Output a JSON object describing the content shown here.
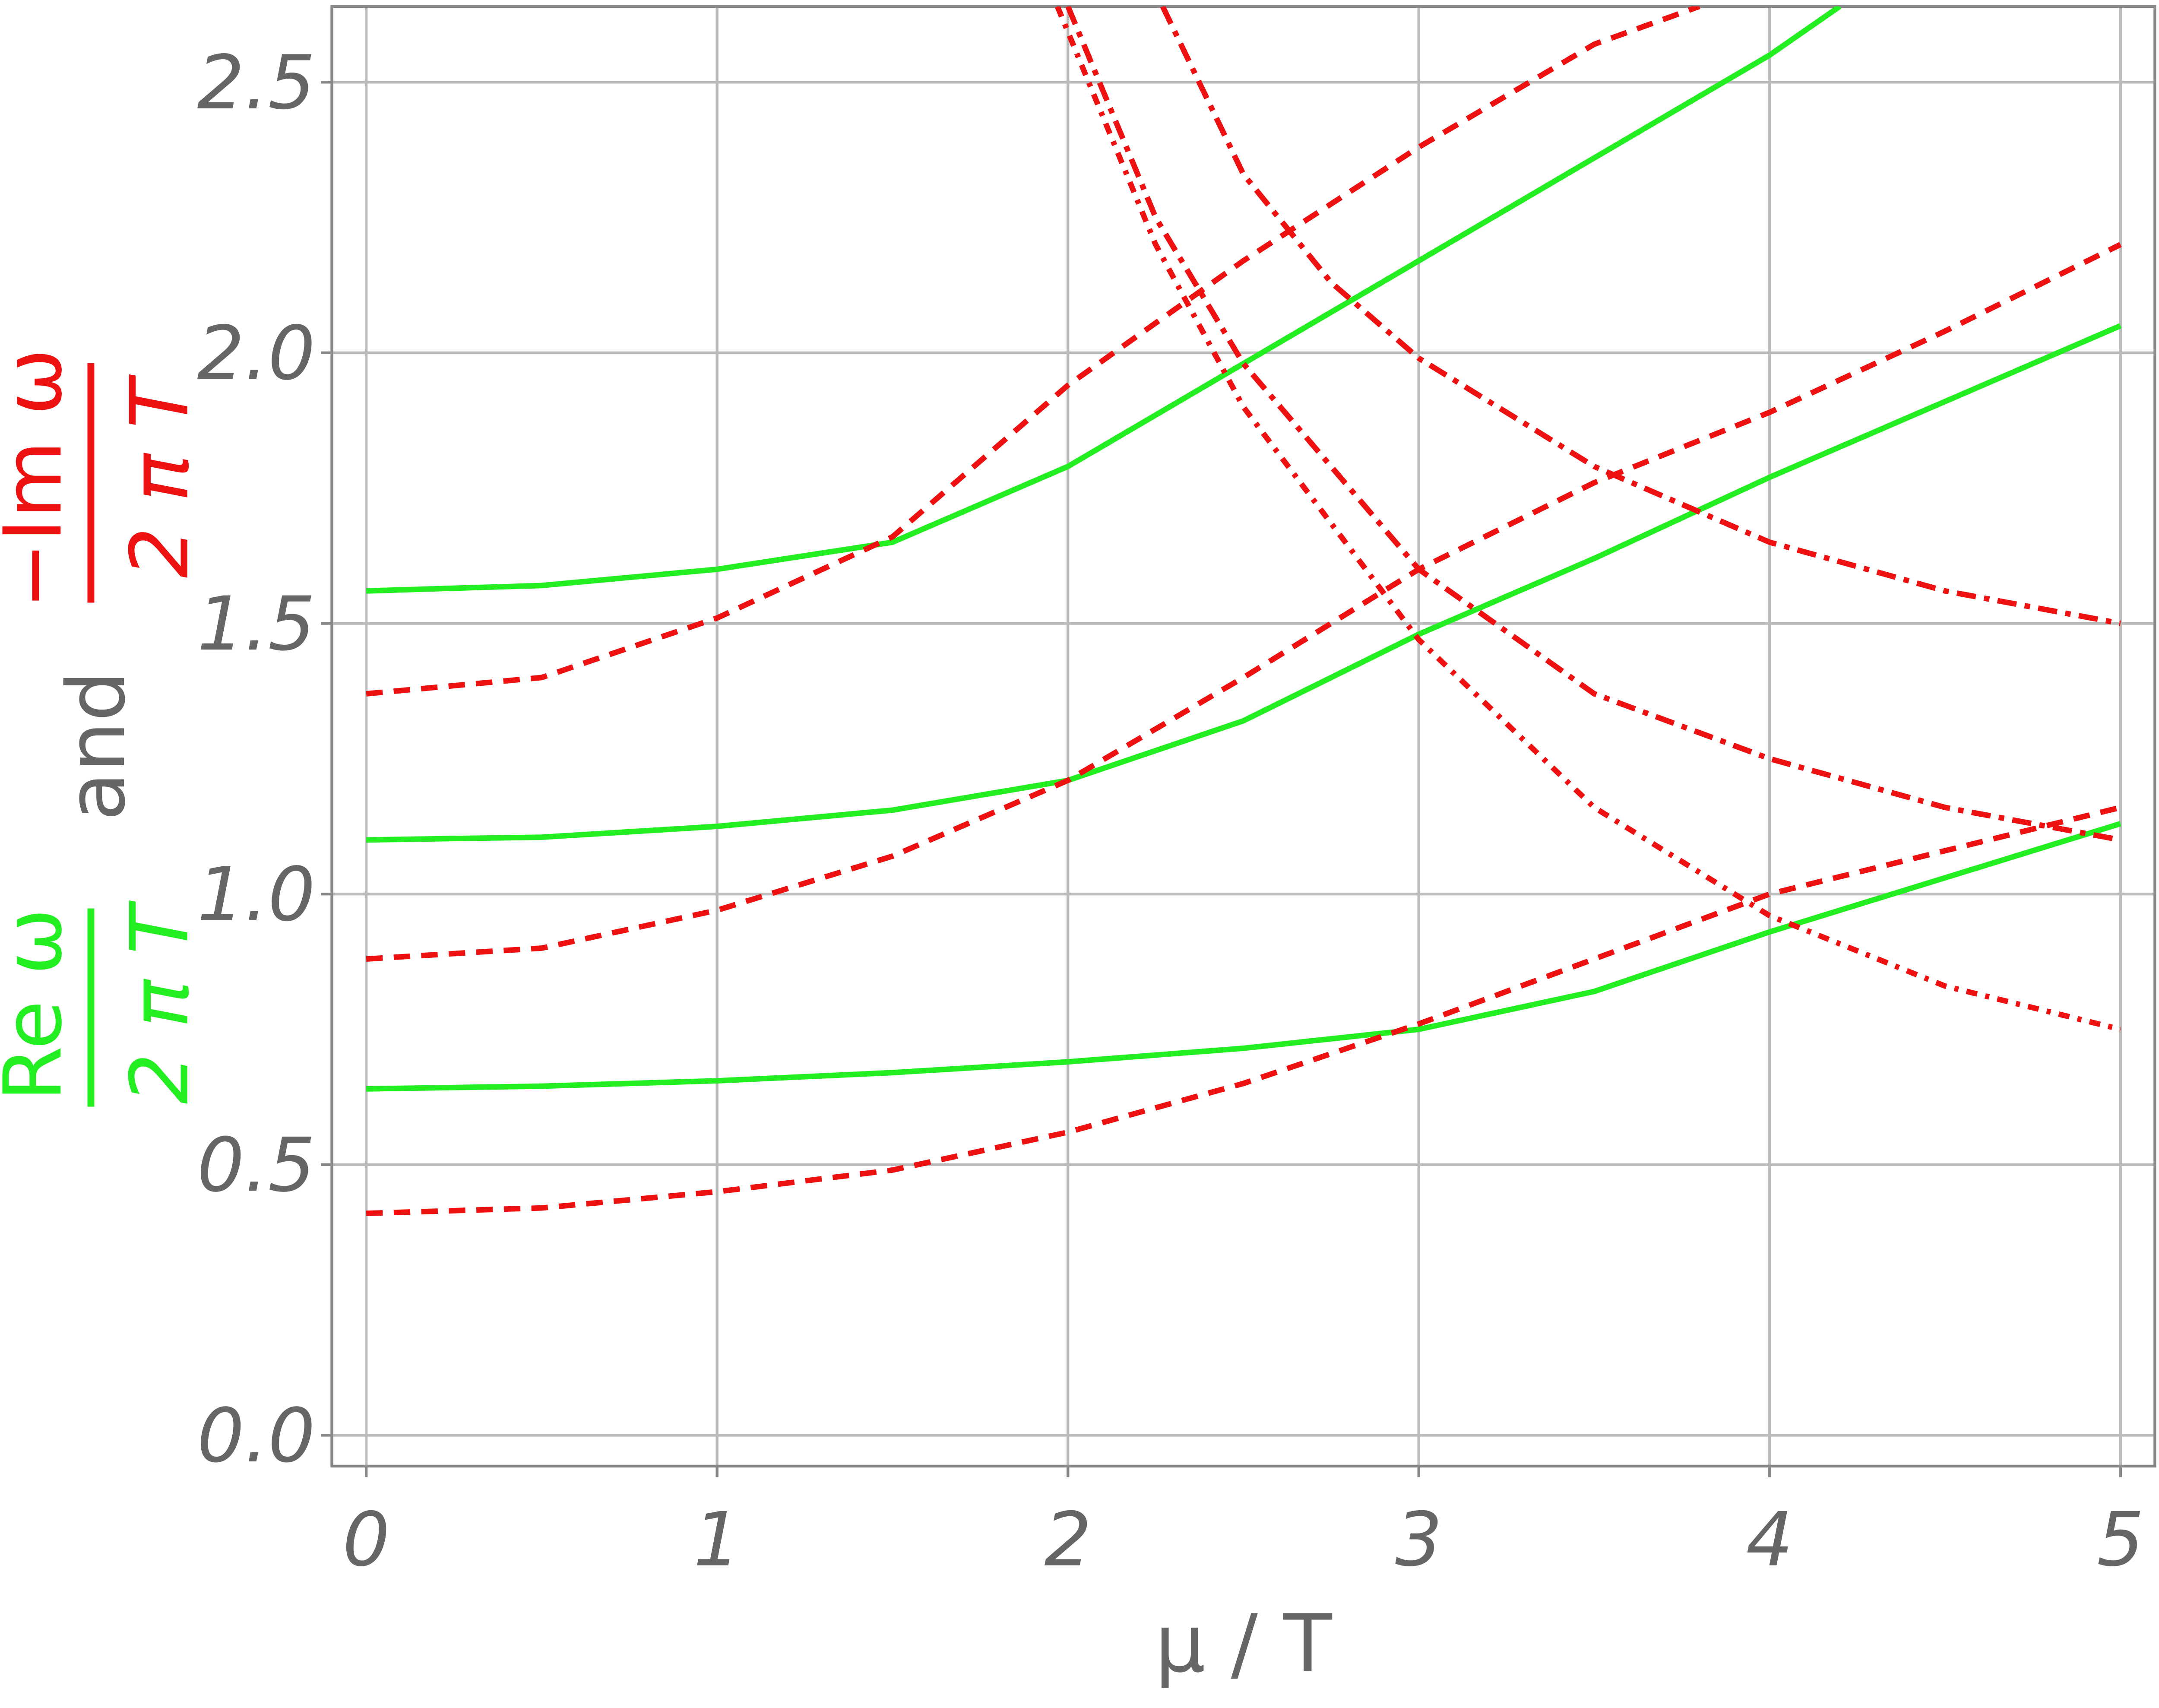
{
  "chart_data": {
    "type": "line",
    "xlabel": "μ / T",
    "ylabel": {
      "re_num": "Re ω",
      "re_den": "2 π T",
      "and": "and",
      "im_num": "−Im ω",
      "im_den": "2 π T"
    },
    "xlim": [
      -0.098,
      5.098
    ],
    "ylim": [
      -0.057,
      2.64
    ],
    "xticks": [
      0,
      1,
      2,
      3,
      4,
      5
    ],
    "yticks": [
      {
        "value": 0,
        "label": "0.0"
      },
      0.5,
      {
        "value": 1,
        "label": "1.0"
      },
      1.5,
      {
        "value": 2,
        "label": "2.0"
      },
      2.5
    ],
    "grid": true,
    "series": [
      {
        "color": "#22ee22",
        "dash": "solid",
        "x": [
          0,
          0.5,
          1,
          1.5,
          2,
          2.5,
          3,
          3.5,
          4,
          4.5,
          5
        ],
        "values": [
          0.64,
          0.645,
          0.655,
          0.67,
          0.69,
          0.715,
          0.75,
          0.82,
          0.93,
          1.03,
          1.13
        ]
      },
      {
        "color": "#22ee22",
        "dash": "solid",
        "x": [
          0,
          0.5,
          1,
          1.5,
          2,
          2.5,
          3,
          3.5,
          4,
          4.5,
          5
        ],
        "values": [
          1.1,
          1.105,
          1.125,
          1.155,
          1.21,
          1.32,
          1.48,
          1.62,
          1.77,
          1.91,
          2.05
        ]
      },
      {
        "color": "#22ee22",
        "dash": "solid",
        "x": [
          0,
          0.5,
          1,
          1.5,
          2,
          2.5,
          3,
          3.5,
          4,
          4.2
        ],
        "values": [
          1.56,
          1.57,
          1.6,
          1.65,
          1.79,
          1.98,
          2.17,
          2.36,
          2.55,
          2.64
        ]
      },
      {
        "color": "#ee1111",
        "dash": "dashed",
        "x": [
          0,
          0.5,
          1,
          1.5,
          2,
          2.5,
          3,
          3.5,
          4,
          4.5,
          5
        ],
        "values": [
          0.41,
          0.42,
          0.45,
          0.49,
          0.56,
          0.65,
          0.76,
          0.88,
          1.0,
          1.08,
          1.16
        ]
      },
      {
        "color": "#ee1111",
        "dash": "dashed",
        "x": [
          0,
          0.5,
          1,
          1.5,
          2,
          2.5,
          3,
          3.5,
          4,
          4.5,
          5
        ],
        "values": [
          0.88,
          0.9,
          0.97,
          1.07,
          1.21,
          1.4,
          1.6,
          1.76,
          1.89,
          2.04,
          2.2
        ]
      },
      {
        "color": "#ee1111",
        "dash": "dashed",
        "x": [
          0,
          0.5,
          1,
          1.5,
          2,
          2.5,
          3,
          3.5,
          3.8
        ],
        "values": [
          1.37,
          1.4,
          1.51,
          1.66,
          1.94,
          2.17,
          2.38,
          2.57,
          2.64
        ]
      },
      {
        "color": "#ee1111",
        "dash": "dashdot",
        "x": [
          2.27,
          2.5,
          2.75,
          3,
          3.5,
          4,
          4.5,
          5
        ],
        "values": [
          2.64,
          2.33,
          2.13,
          1.99,
          1.79,
          1.65,
          1.56,
          1.5
        ]
      },
      {
        "color": "#ee1111",
        "dash": "dashdot",
        "x": [
          2.0,
          2.25,
          2.5,
          3,
          3.5,
          4,
          4.5,
          5
        ],
        "values": [
          2.64,
          2.25,
          1.98,
          1.6,
          1.37,
          1.25,
          1.16,
          1.1
        ]
      },
      {
        "color": "#ee1111",
        "dash": "dotdash",
        "x": [
          1.97,
          2.25,
          2.5,
          3,
          3.5,
          4,
          4.5,
          5
        ],
        "values": [
          2.64,
          2.2,
          1.9,
          1.47,
          1.16,
          0.96,
          0.83,
          0.75
        ]
      }
    ]
  }
}
